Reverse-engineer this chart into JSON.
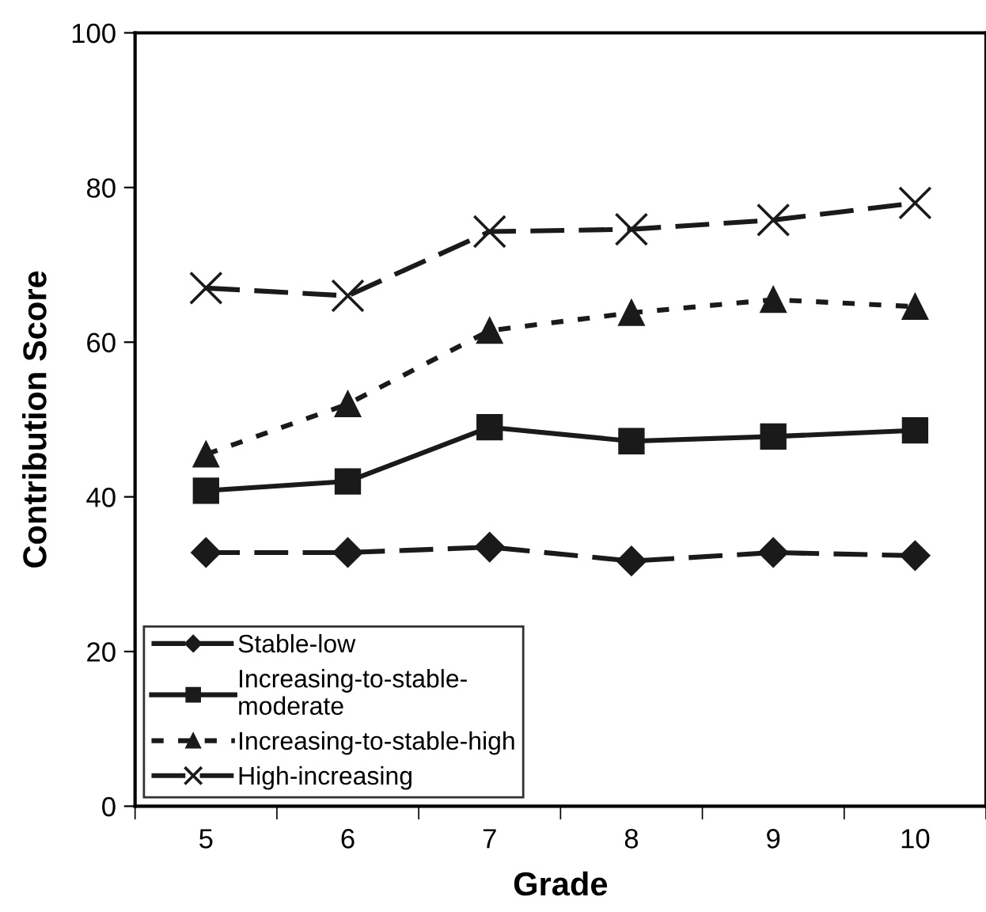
{
  "chart_data": {
    "type": "line",
    "xlabel": "Grade",
    "ylabel": "Contribution Score",
    "categories": [
      "5",
      "6",
      "7",
      "8",
      "9",
      "10"
    ],
    "ylim": [
      0,
      100
    ],
    "yticks": [
      0,
      20,
      40,
      60,
      80,
      100
    ],
    "grid": false,
    "legend": "bottom left",
    "series": [
      {
        "name": "Stable-low",
        "color": "#1a1a1a",
        "marker": "diamond",
        "line_style": "dashed",
        "values": [
          32.8,
          32.8,
          33.5,
          31.7,
          32.8,
          32.4
        ]
      },
      {
        "name": "Increasing-to-stable-moderate",
        "color": "#1a1a1a",
        "marker": "square",
        "line_style": "solid",
        "values": [
          40.8,
          42,
          49,
          47.2,
          47.8,
          48.6
        ]
      },
      {
        "name": "Increasing-to-stable-high",
        "color": "#1a1a1a",
        "marker": "triangle",
        "line_style": "dotted",
        "values": [
          45.5,
          52,
          61.5,
          63.8,
          65.5,
          64.6
        ]
      },
      {
        "name": "High-increasing",
        "color": "#1a1a1a",
        "marker": "cross",
        "line_style": "dashed",
        "values": [
          67,
          66,
          74.3,
          74.6,
          75.8,
          78
        ]
      }
    ]
  }
}
